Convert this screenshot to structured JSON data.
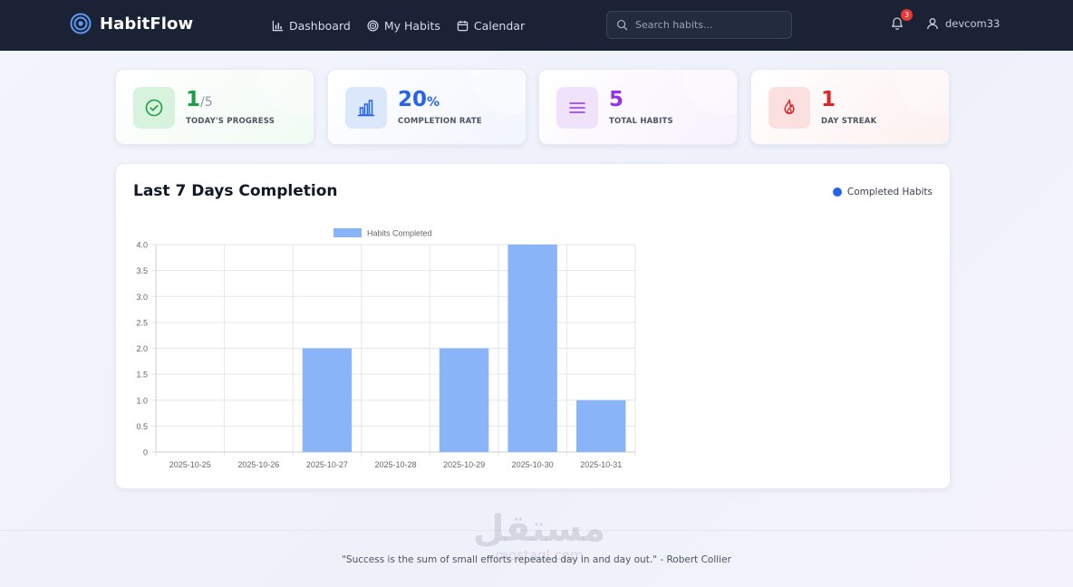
{
  "navbar": {
    "brand": "HabitFlow",
    "links": [
      {
        "label": "Dashboard",
        "icon": "bar-chart-icon"
      },
      {
        "label": "My Habits",
        "icon": "target-icon"
      },
      {
        "label": "Calendar",
        "icon": "calendar-icon"
      }
    ],
    "search": {
      "placeholder": "Search habits..."
    },
    "notifications": {
      "count": "3"
    },
    "user": {
      "name": "devcom33"
    }
  },
  "stats": [
    {
      "value": "1",
      "suffix": "/5",
      "label": "TODAY'S PROGRESS",
      "icon": "check-circle-icon",
      "color": "#1e9e45"
    },
    {
      "value": "20",
      "suffix": "%",
      "label": "COMPLETION RATE",
      "icon": "bar-chart-icon",
      "color": "#2563eb"
    },
    {
      "value": "5",
      "suffix": "",
      "label": "TOTAL HABITS",
      "icon": "list-icon",
      "color": "#9333ea"
    },
    {
      "value": "1",
      "suffix": "",
      "label": "DAY STREAK",
      "icon": "flame-icon",
      "color": "#dc2626"
    }
  ],
  "chart_panel": {
    "title": "Last 7 Days Completion",
    "legend_label": "Completed Habits",
    "legend_color": "#2563eb"
  },
  "chart_data": {
    "type": "bar",
    "categories": [
      "2025-10-25",
      "2025-10-26",
      "2025-10-27",
      "2025-10-28",
      "2025-10-29",
      "2025-10-30",
      "2025-10-31"
    ],
    "series": [
      {
        "name": "Habits Completed",
        "values": [
          0,
          0,
          2,
          0,
          2,
          4,
          1
        ],
        "color": "#8ab4f8"
      }
    ],
    "ylim": [
      0,
      4
    ],
    "yticks": [
      "0",
      "0.5",
      "1.0",
      "1.5",
      "2.0",
      "2.5",
      "3.0",
      "3.5",
      "4.0"
    ],
    "grid": true,
    "legend": "top"
  },
  "footer": {
    "quote": "\"Success is the sum of small efforts repeated day in and day out.\" - Robert Collier"
  },
  "watermark": {
    "arabic": "مستقل",
    "latin": "mostaql.com"
  }
}
